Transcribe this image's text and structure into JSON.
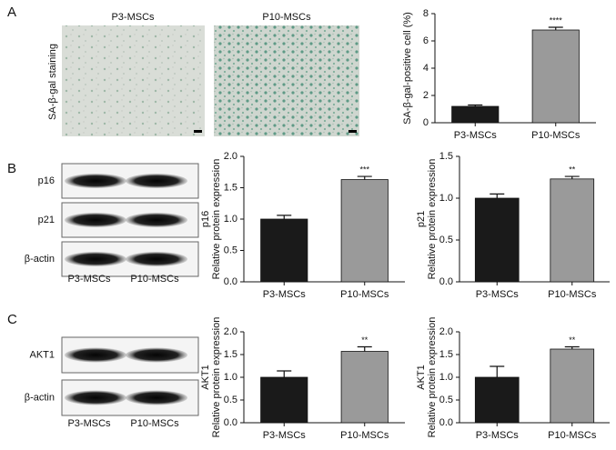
{
  "panels": [
    "A",
    "B",
    "C"
  ],
  "staining": {
    "label": "SA-β-gal staining",
    "columns": [
      "P3-MSCs",
      "P10-MSCs"
    ]
  },
  "blots": [
    {
      "rows": [
        "p16",
        "p21",
        "β-actin"
      ],
      "columns": [
        "P3-MSCs",
        "P10-MSCs"
      ]
    },
    {
      "rows": [
        "AKT1",
        "β-actin"
      ],
      "columns": [
        "P3-MSCs",
        "P10-MSCs"
      ]
    }
  ],
  "chart_data": [
    {
      "type": "bar",
      "ylabel": [
        "SA-β-gal-positive cell (%)"
      ],
      "categories": [
        "P3-MSCs",
        "P10-MSCs"
      ],
      "values": [
        1.2,
        6.8
      ],
      "errors": [
        0.1,
        0.2
      ],
      "colors": [
        "#1a1a1a",
        "#9a9a9a"
      ],
      "annotation": "****",
      "ylim": [
        0,
        8
      ],
      "yticks": [
        0,
        2,
        4,
        6,
        8
      ]
    },
    {
      "type": "bar",
      "ylabel": [
        "p16",
        "Relative protein expression"
      ],
      "categories": [
        "P3-MSCs",
        "P10-MSCs"
      ],
      "values": [
        1.0,
        1.63
      ],
      "errors": [
        0.06,
        0.05
      ],
      "colors": [
        "#1a1a1a",
        "#9a9a9a"
      ],
      "annotation": "***",
      "ylim": [
        0,
        2
      ],
      "yticks": [
        {
          "value": 0,
          "label": "0.0"
        },
        {
          "value": 0.5,
          "label": "0.5"
        },
        {
          "value": 1,
          "label": "1.0"
        },
        {
          "value": 1.5,
          "label": "1.5"
        },
        {
          "value": 2,
          "label": "2.0"
        }
      ]
    },
    {
      "type": "bar",
      "ylabel": [
        "p21",
        "Relative protein expression"
      ],
      "categories": [
        "P3-MSCs",
        "P10-MSCs"
      ],
      "values": [
        1.0,
        1.23
      ],
      "errors": [
        0.05,
        0.03
      ],
      "colors": [
        "#1a1a1a",
        "#9a9a9a"
      ],
      "annotation": "**",
      "ylim": [
        0,
        1.5
      ],
      "yticks": [
        {
          "value": 0,
          "label": "0.0"
        },
        {
          "value": 0.5,
          "label": "0.5"
        },
        {
          "value": 1,
          "label": "1.0"
        },
        {
          "value": 1.5,
          "label": "1.5"
        }
      ]
    },
    {
      "type": "bar",
      "ylabel": [
        "AKT1",
        "Relative protein expression"
      ],
      "categories": [
        "P3-MSCs",
        "P10-MSCs"
      ],
      "values": [
        1.0,
        1.57
      ],
      "errors": [
        0.14,
        0.1
      ],
      "colors": [
        "#1a1a1a",
        "#9a9a9a"
      ],
      "annotation": "**",
      "ylim": [
        0,
        2
      ],
      "yticks": [
        {
          "value": 0,
          "label": "0.0"
        },
        {
          "value": 0.5,
          "label": "0.5"
        },
        {
          "value": 1,
          "label": "1.0"
        },
        {
          "value": 1.5,
          "label": "1.5"
        },
        {
          "value": 2,
          "label": "2.0"
        }
      ]
    },
    {
      "type": "bar",
      "ylabel": [
        "AKT1",
        "Relative protein expression"
      ],
      "categories": [
        "P3-MSCs",
        "P10-MSCs"
      ],
      "values": [
        1.0,
        1.62
      ],
      "errors": [
        0.24,
        0.05
      ],
      "colors": [
        "#1a1a1a",
        "#9a9a9a"
      ],
      "annotation": "**",
      "ylim": [
        0,
        2
      ],
      "yticks": [
        {
          "value": 0,
          "label": "0.0"
        },
        {
          "value": 0.5,
          "label": "0.5"
        },
        {
          "value": 1,
          "label": "1.0"
        },
        {
          "value": 1.5,
          "label": "1.5"
        },
        {
          "value": 2,
          "label": "2.0"
        }
      ]
    }
  ]
}
